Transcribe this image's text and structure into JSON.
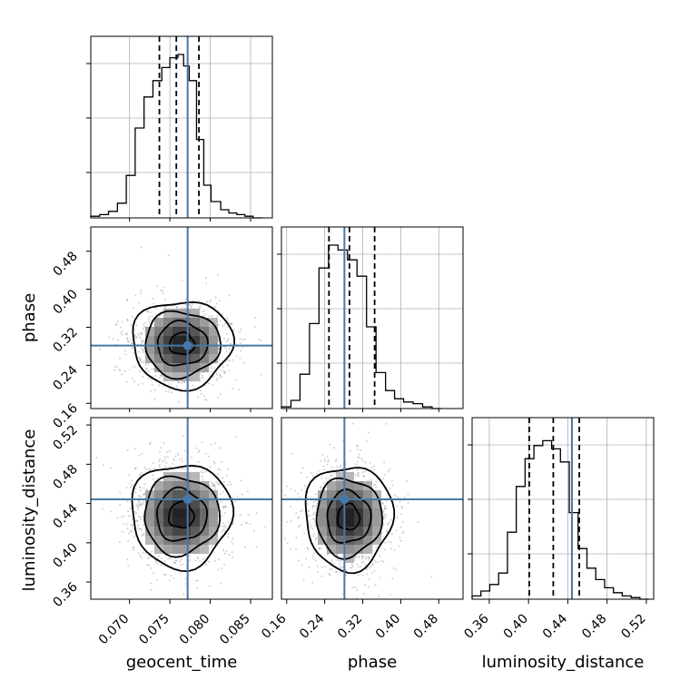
{
  "truth_color": "#4878a8",
  "hist_color": "#000000",
  "chart_data": {
    "type": "corner",
    "parameters": [
      "geocent_time",
      "phase",
      "luminosity_distance"
    ],
    "axes": {
      "geocent_time": {
        "label": "geocent_time",
        "ticks": [
          0.07,
          0.075,
          0.08,
          0.085
        ],
        "tick_labels": [
          "0.070",
          "0.075",
          "0.080",
          "0.085"
        ],
        "range": [
          0.0652,
          0.0877
        ],
        "truth": 0.0772,
        "quantiles": [
          0.0737,
          0.0758,
          0.0786
        ]
      },
      "phase": {
        "label": "phase",
        "ticks": [
          0.16,
          0.24,
          0.32,
          0.4,
          0.48
        ],
        "tick_labels": [
          "0.16",
          "0.24",
          "0.32",
          "0.40",
          "0.48"
        ],
        "range": [
          0.149,
          0.531
        ],
        "truth": 0.2815,
        "quantiles": [
          0.249,
          0.292,
          0.345
        ]
      },
      "luminosity_distance": {
        "label": "luminosity_distance",
        "ticks": [
          0.36,
          0.4,
          0.44,
          0.48,
          0.52
        ],
        "tick_labels": [
          "0.36",
          "0.40",
          "0.44",
          "0.48",
          "0.52"
        ],
        "range": [
          0.3425,
          0.5275
        ],
        "truth": 0.4442,
        "quantiles": [
          0.4008,
          0.4252,
          0.4517
        ]
      }
    },
    "histograms": {
      "geocent_time": {
        "bin_edges": [
          0.0652,
          0.0663,
          0.0674,
          0.0685,
          0.0696,
          0.0707,
          0.0718,
          0.0729,
          0.074,
          0.075,
          0.076,
          0.0767,
          0.0774,
          0.0783,
          0.0792,
          0.0801,
          0.0813,
          0.0823,
          0.0833,
          0.0843,
          0.0853,
          0.0865
        ],
        "counts": [
          0.01,
          0.02,
          0.04,
          0.09,
          0.26,
          0.55,
          0.74,
          0.84,
          0.92,
          0.98,
          1.0,
          0.93,
          0.84,
          0.48,
          0.2,
          0.1,
          0.05,
          0.03,
          0.02,
          0.01,
          0.0
        ]
      },
      "phase": {
        "bin_edges": [
          0.149,
          0.169,
          0.188,
          0.208,
          0.228,
          0.248,
          0.268,
          0.288,
          0.308,
          0.328,
          0.348,
          0.368,
          0.387,
          0.406,
          0.426,
          0.446,
          0.466,
          0.486
        ],
        "counts": [
          0.01,
          0.05,
          0.21,
          0.52,
          0.86,
          1.0,
          0.97,
          0.91,
          0.81,
          0.5,
          0.22,
          0.11,
          0.06,
          0.04,
          0.03,
          0.01,
          0.0
        ]
      },
      "luminosity_distance": {
        "bin_edges": [
          0.3425,
          0.3515,
          0.3605,
          0.3695,
          0.3785,
          0.3875,
          0.3965,
          0.4055,
          0.4145,
          0.4235,
          0.4325,
          0.4415,
          0.4505,
          0.4595,
          0.4685,
          0.4775,
          0.4865,
          0.4955,
          0.5045,
          0.5135,
          0.5225
        ],
        "counts": [
          0.02,
          0.05,
          0.09,
          0.16,
          0.41,
          0.69,
          0.86,
          0.94,
          0.97,
          0.92,
          0.84,
          0.53,
          0.31,
          0.19,
          0.12,
          0.07,
          0.04,
          0.02,
          0.01,
          0.0
        ]
      }
    },
    "contours": {
      "phase_vs_geocent_time": {
        "center": [
          0.0765,
          0.285
        ],
        "sigma": [
          0.0031,
          0.046
        ]
      },
      "luminosity_distance_vs_geocent_time": {
        "center": [
          0.0764,
          0.428
        ],
        "sigma": [
          0.0031,
          0.0265
        ]
      },
      "luminosity_distance_vs_phase": {
        "center": [
          0.29,
          0.426
        ],
        "sigma": [
          0.046,
          0.0265
        ]
      }
    },
    "contour_levels_sigma": [
      0.5,
      1.0,
      1.5,
      2.0
    ],
    "grid": true
  }
}
